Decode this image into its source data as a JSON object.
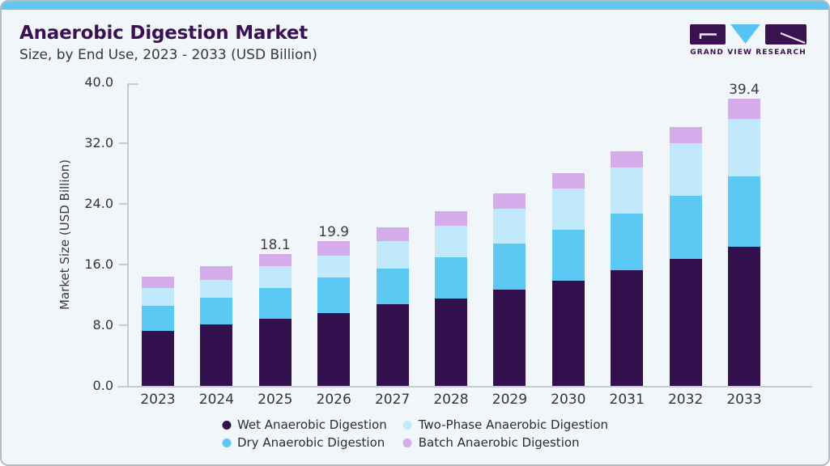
{
  "header": {
    "title": "Anaerobic Digestion Market",
    "subtitle": "Size, by End Use, 2023 - 2033 (USD Billion)"
  },
  "logo": {
    "text": "GRAND VIEW RESEARCH",
    "brand_purple": "#3a1252",
    "brand_blue": "#56c5f2"
  },
  "chart_data": {
    "type": "bar",
    "stacked": true,
    "title": "Anaerobic Digestion Market Size, by End Use, 2023 - 2033 (USD Billion)",
    "categories": [
      "2023",
      "2024",
      "2025",
      "2026",
      "2027",
      "2028",
      "2029",
      "2030",
      "2031",
      "2032",
      "2033"
    ],
    "series": [
      {
        "name": "Wet Anaerobic Digestion",
        "color": "#33114e",
        "values": [
          7.6,
          8.5,
          9.2,
          10.0,
          11.2,
          12.0,
          13.2,
          14.5,
          15.9,
          17.5,
          19.1
        ]
      },
      {
        "name": "Dry Anaerobic Digestion",
        "color": "#5bc9f4",
        "values": [
          3.4,
          3.6,
          4.2,
          4.9,
          4.9,
          5.7,
          6.4,
          7.0,
          7.8,
          8.6,
          9.7
        ]
      },
      {
        "name": "Two-Phase Anaerobic Digestion",
        "color": "#c2e8fb",
        "values": [
          2.4,
          2.5,
          3.0,
          3.0,
          3.8,
          4.3,
          4.7,
          5.6,
          6.3,
          7.2,
          7.9
        ]
      },
      {
        "name": "Batch Anaerobic Digestion",
        "color": "#d4aceb",
        "values": [
          1.6,
          1.8,
          1.7,
          2.0,
          1.9,
          2.0,
          2.2,
          2.1,
          2.2,
          2.3,
          2.7
        ]
      }
    ],
    "totals": [
      15.0,
      16.4,
      18.1,
      19.9,
      21.8,
      24.0,
      26.5,
      29.2,
      32.2,
      35.6,
      39.4
    ],
    "value_labels": {
      "2025": "18.1",
      "2026": "19.9",
      "2033": "39.4"
    },
    "ylabel": "Market Size (USD Billion)",
    "yticks": [
      {
        "label": "0.0",
        "value": 0
      },
      {
        "label": "8.0",
        "value": 8
      },
      {
        "label": "16.0",
        "value": 16
      },
      {
        "label": "24.0",
        "value": 24
      },
      {
        "label": "32.0",
        "value": 32
      },
      {
        "label": "40.0",
        "value": 40
      }
    ],
    "ylim": [
      0,
      40
    ],
    "grid": false,
    "legend_position": "bottom",
    "legend_display_order": [
      "Wet Anaerobic Digestion",
      "Two-Phase Anaerobic Digestion",
      "Dry Anaerobic Digestion",
      "Batch Anaerobic Digestion"
    ]
  }
}
